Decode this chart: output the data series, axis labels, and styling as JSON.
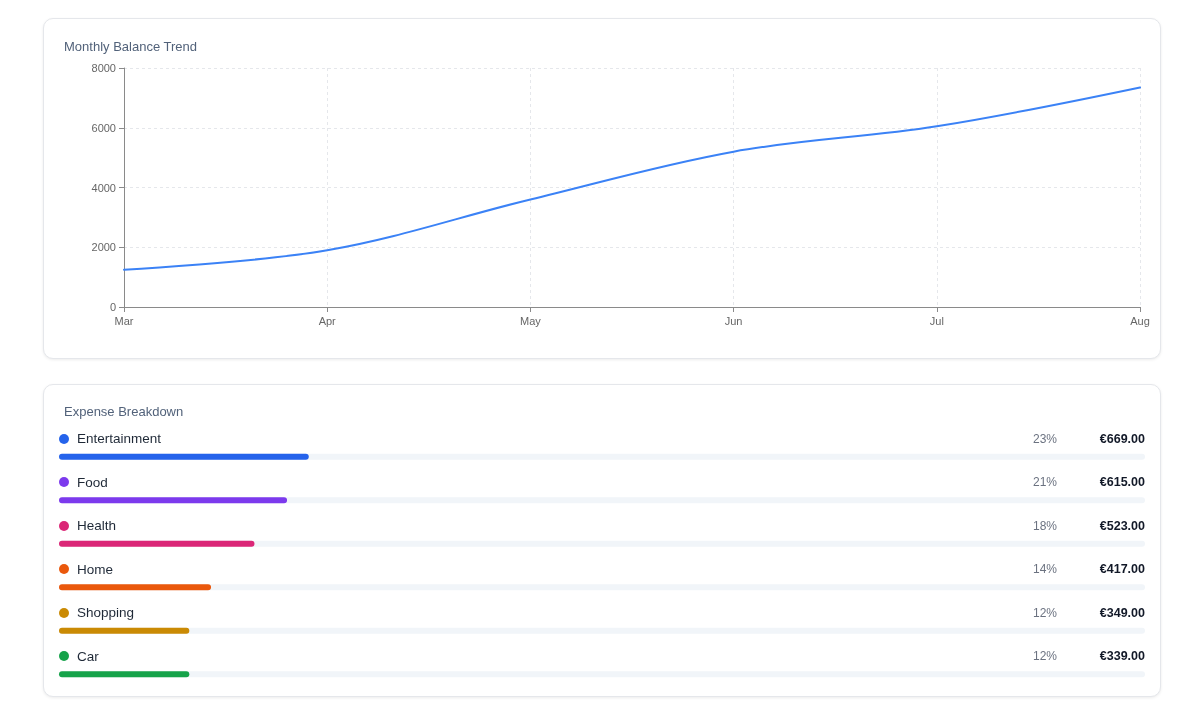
{
  "chart_data": [
    {
      "type": "line",
      "title": "Monthly Balance Trend",
      "categories": [
        "Mar",
        "Apr",
        "May",
        "Jun",
        "Jul",
        "Aug"
      ],
      "series": [
        {
          "color": "#3b82f6",
          "values": [
            1250,
            1900,
            3600,
            5200,
            6050,
            7350
          ]
        }
      ],
      "ylim": [
        0,
        8000
      ],
      "yticks": [
        0,
        2000,
        4000,
        6000,
        8000
      ],
      "grid": true,
      "marker": "none"
    },
    {
      "type": "bar",
      "orientation": "horizontal",
      "title": "Expense Breakdown",
      "categories": [
        "Entertainment",
        "Food",
        "Health",
        "Home",
        "Shopping",
        "Car"
      ],
      "values": [
        23,
        21,
        18,
        14,
        12,
        12
      ],
      "colors": [
        "#2563eb",
        "#7c3aed",
        "#db2777",
        "#ea580c",
        "#ca8a04",
        "#16a34a"
      ],
      "xlim": [
        0,
        100
      ],
      "value_labels": [
        "23%",
        "21%",
        "18%",
        "14%",
        "12%",
        "12%"
      ],
      "annotations": [
        "€669.00",
        "€615.00",
        "€523.00",
        "€417.00",
        "€349.00",
        "€339.00"
      ],
      "tick_labels": "y"
    }
  ]
}
